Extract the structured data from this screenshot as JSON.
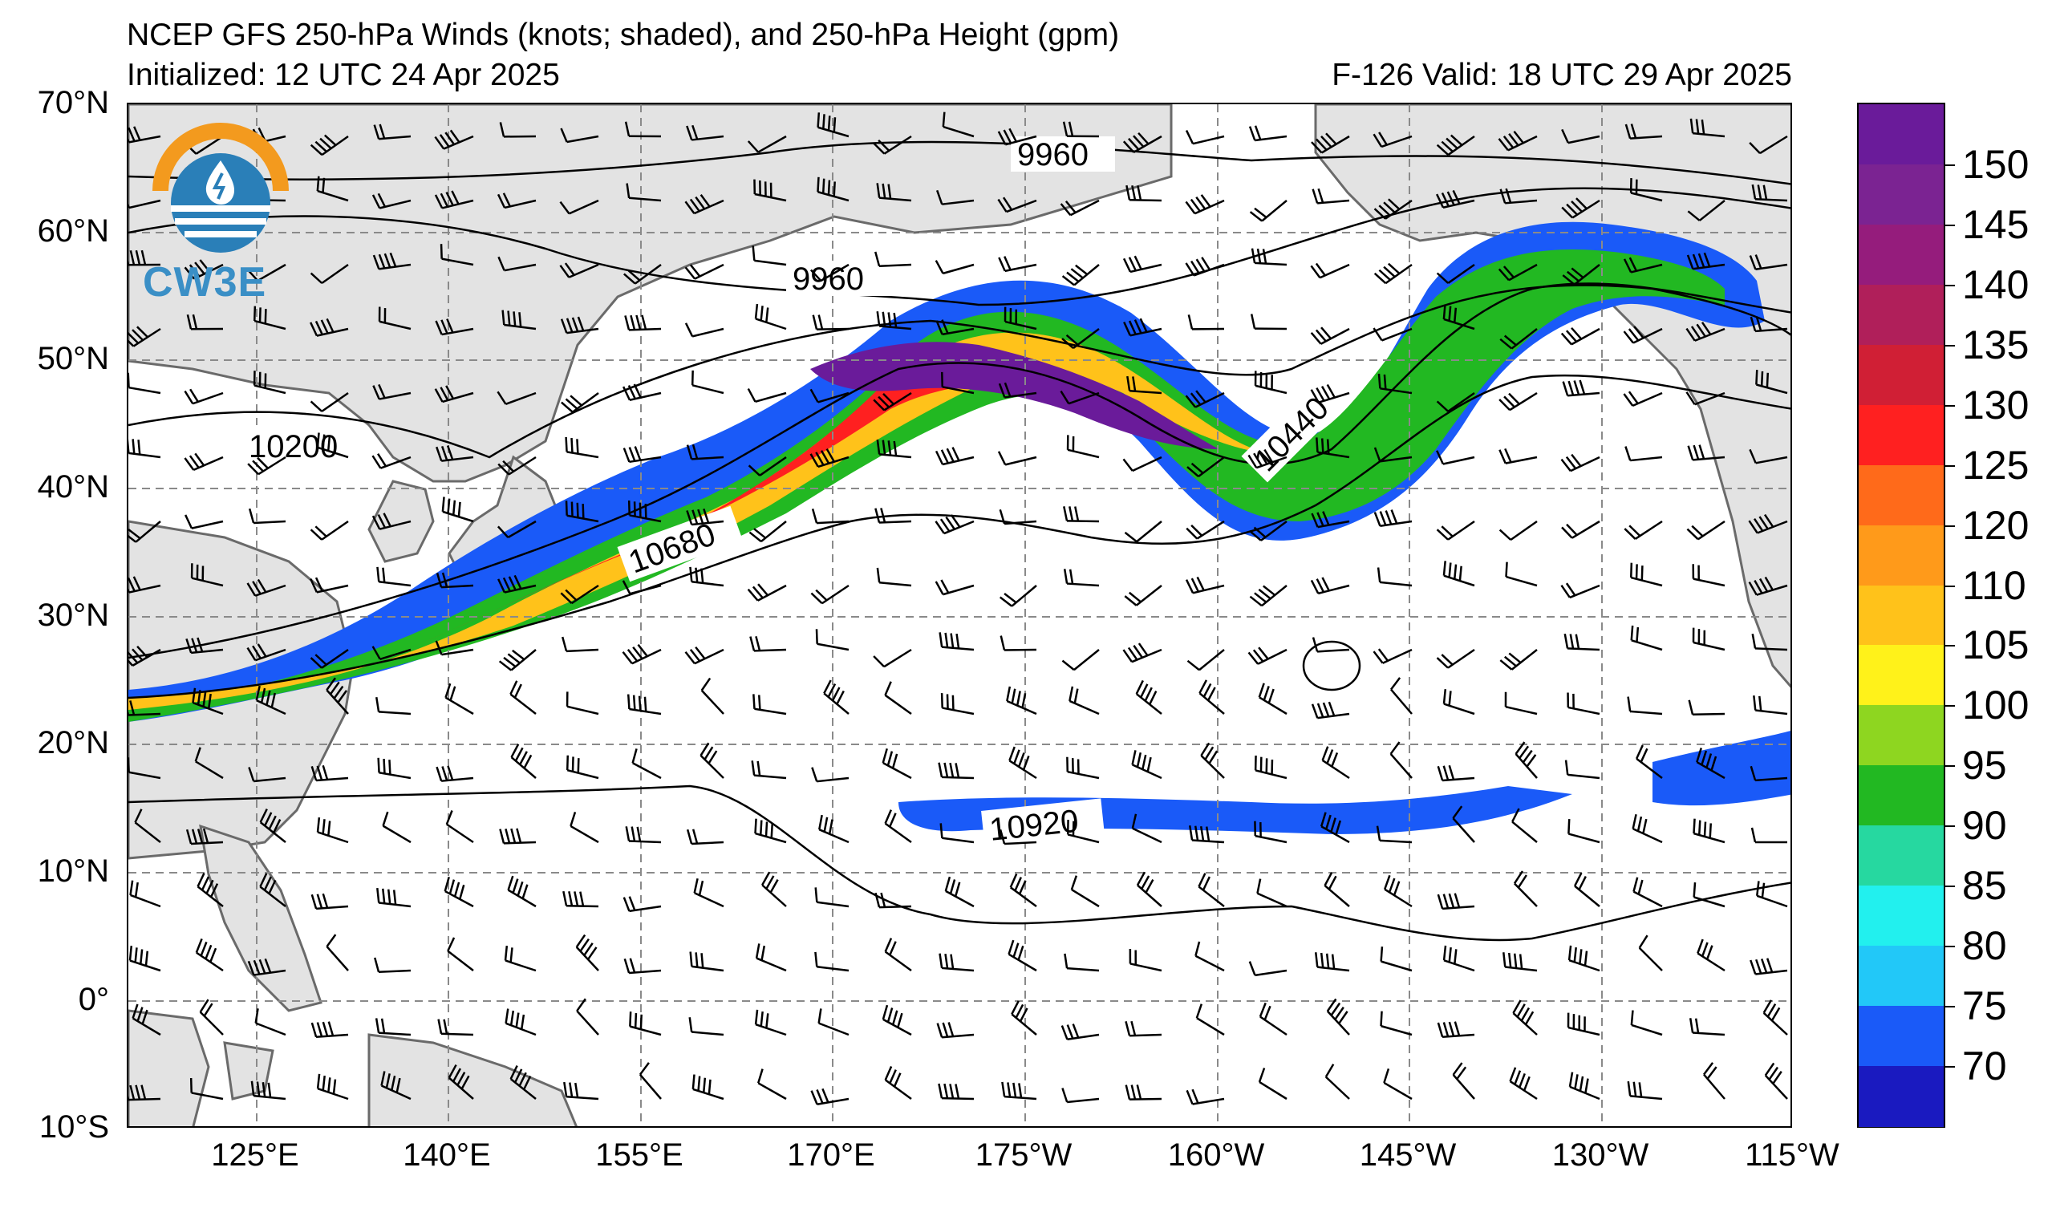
{
  "header": {
    "title": "NCEP GFS 250-hPa Winds (knots; shaded), and 250-hPa Height (gpm)",
    "initialized": "Initialized: 12 UTC 24 Apr 2025",
    "valid": "F-126  Valid: 18 UTC 29 Apr 2025"
  },
  "logo": {
    "text": "CW3E"
  },
  "map": {
    "lat_labels": [
      "70°N",
      "60°N",
      "50°N",
      "40°N",
      "30°N",
      "20°N",
      "10°N",
      "0°",
      "10°S"
    ],
    "lon_labels": [
      "125°E",
      "140°E",
      "155°E",
      "170°E",
      "175°W",
      "160°W",
      "145°W",
      "130°W",
      "115°W"
    ],
    "contour_labels": [
      "9960",
      "9960",
      "10200",
      "10680",
      "10440",
      "10920"
    ]
  },
  "colorbar": {
    "labels": [
      "150",
      "145",
      "140",
      "135",
      "130",
      "125",
      "120",
      "110",
      "105",
      "100",
      "95",
      "90",
      "85",
      "80",
      "75",
      "70"
    ],
    "colors": [
      "#6a1b9a",
      "#7b2392",
      "#951c7c",
      "#b01f5a",
      "#d01f35",
      "#ff2020",
      "#ff6a1a",
      "#ff9a1a",
      "#ffc21a",
      "#fff21a",
      "#8ed620",
      "#22b822",
      "#26d8a0",
      "#22f0ee",
      "#22c8f8",
      "#1a5af8",
      "#1a1ac0"
    ]
  }
}
